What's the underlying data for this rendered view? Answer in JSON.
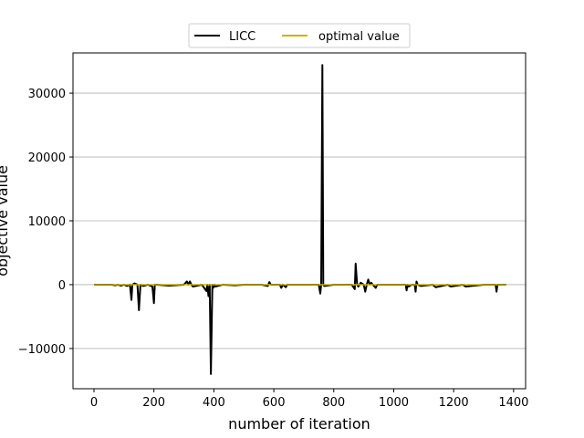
{
  "chart_data": {
    "type": "line",
    "xlabel": "number of iteration",
    "ylabel": "objective value",
    "xlim": [
      -70,
      1440
    ],
    "ylim": [
      -16300,
      36300
    ],
    "xticks": [
      0,
      200,
      400,
      600,
      800,
      1000,
      1200,
      1400
    ],
    "yticks": [
      -10000,
      0,
      10000,
      20000,
      30000
    ],
    "ytick_labels": [
      "−10000",
      "0",
      "10000",
      "20000",
      "30000"
    ],
    "grid": "horizontal",
    "legend": {
      "position": "top-center",
      "columns": 2
    },
    "series": [
      {
        "name": "LICC",
        "color": "#000000",
        "x": [
          0,
          60,
          70,
          80,
          90,
          100,
          110,
          120,
          125,
          128,
          135,
          145,
          150,
          155,
          165,
          180,
          195,
          200,
          203,
          210,
          250,
          300,
          310,
          315,
          320,
          325,
          330,
          360,
          375,
          378,
          382,
          386,
          390,
          395,
          398,
          402,
          405,
          430,
          470,
          500,
          560,
          580,
          585,
          590,
          620,
          625,
          630,
          640,
          645,
          700,
          750,
          755,
          758,
          762,
          765,
          768,
          800,
          860,
          870,
          873,
          878,
          882,
          890,
          900,
          905,
          910,
          915,
          920,
          925,
          930,
          940,
          945,
          960,
          1000,
          1040,
          1043,
          1046,
          1050,
          1060,
          1070,
          1073,
          1076,
          1080,
          1090,
          1130,
          1140,
          1180,
          1190,
          1230,
          1240,
          1300,
          1340,
          1343,
          1346,
          1350,
          1375
        ],
        "values": [
          0,
          0,
          -100,
          0,
          -150,
          0,
          -200,
          0,
          -2400,
          0,
          200,
          0,
          -4000,
          0,
          -200,
          0,
          -300,
          -2900,
          0,
          0,
          -150,
          0,
          500,
          0,
          500,
          0,
          -300,
          0,
          -1000,
          0,
          -1800,
          0,
          -14000,
          0,
          -500,
          0,
          -300,
          0,
          -100,
          0,
          0,
          -200,
          400,
          0,
          0,
          -500,
          0,
          -400,
          0,
          0,
          0,
          -1400,
          0,
          34400,
          0,
          -200,
          0,
          0,
          -700,
          3300,
          0,
          -300,
          300,
          0,
          -1100,
          0,
          800,
          0,
          300,
          0,
          -500,
          0,
          0,
          0,
          0,
          -900,
          0,
          -300,
          0,
          0,
          -1100,
          500,
          0,
          -200,
          0,
          -400,
          0,
          -300,
          0,
          -300,
          0,
          0,
          -1100,
          0,
          0,
          0
        ]
      },
      {
        "name": "optimal value",
        "color": "#c8b400",
        "x": [
          0,
          1375
        ],
        "values": [
          0,
          0
        ]
      }
    ]
  }
}
